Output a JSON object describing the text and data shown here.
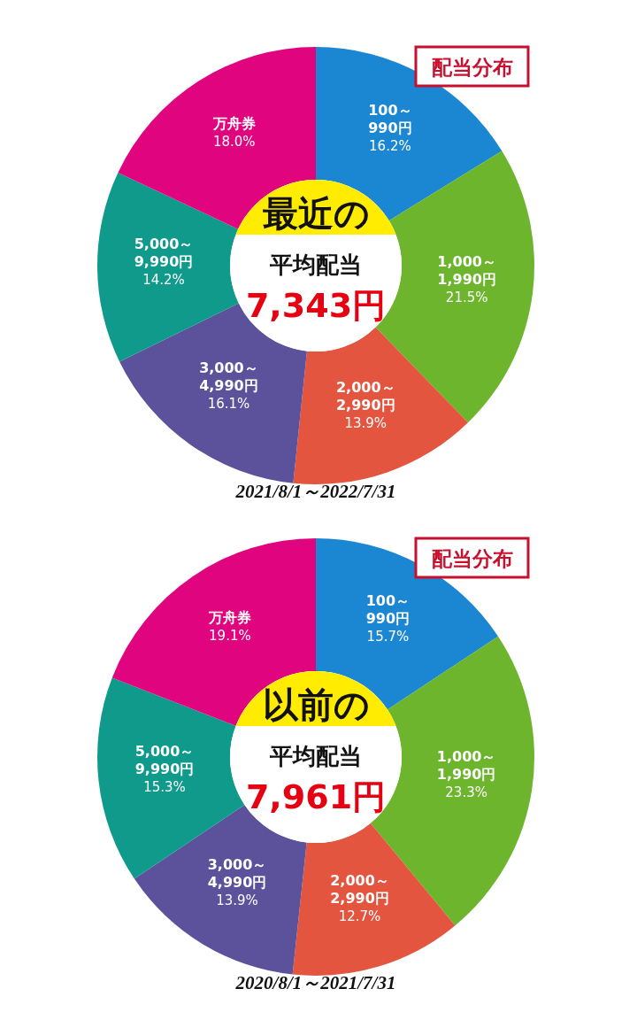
{
  "chart_data": [
    {
      "type": "donut",
      "title": "配当分布",
      "categories": [
        "100～\n990円",
        "1,000～\n1,990円",
        "2,000～\n2,990円",
        "3,000～\n4,990円",
        "5,000～\n9,990円",
        "万舟券"
      ],
      "values": [
        16.2,
        21.5,
        13.9,
        16.1,
        14.2,
        18.0
      ],
      "value_labels": [
        "16.2%",
        "21.5%",
        "13.9%",
        "16.1%",
        "14.2%",
        "18.0%"
      ],
      "colors": [
        "#1b86d1",
        "#6cb52d",
        "#e4553f",
        "#5c529c",
        "#0f9a8b",
        "#e0047f"
      ],
      "annotations": [
        "最近の",
        "平均配当",
        "7,343円",
        "2021/8/1～2022/7/31"
      ]
    },
    {
      "type": "donut",
      "title": "配当分布",
      "categories": [
        "100～\n990円",
        "1,000～\n1,990円",
        "2,000～\n2,990円",
        "3,000～\n4,990円",
        "5,000～\n9,990円",
        "万舟券"
      ],
      "values": [
        15.7,
        23.3,
        12.7,
        13.9,
        15.3,
        19.1
      ],
      "value_labels": [
        "15.7%",
        "23.3%",
        "12.7%",
        "13.9%",
        "15.3%",
        "19.1%"
      ],
      "colors": [
        "#1b86d1",
        "#6cb52d",
        "#e4553f",
        "#5c529c",
        "#0f9a8b",
        "#e0047f"
      ],
      "annotations": [
        "以前の",
        "平均配当",
        "7,961円",
        "2020/8/1～2021/7/31"
      ]
    }
  ]
}
